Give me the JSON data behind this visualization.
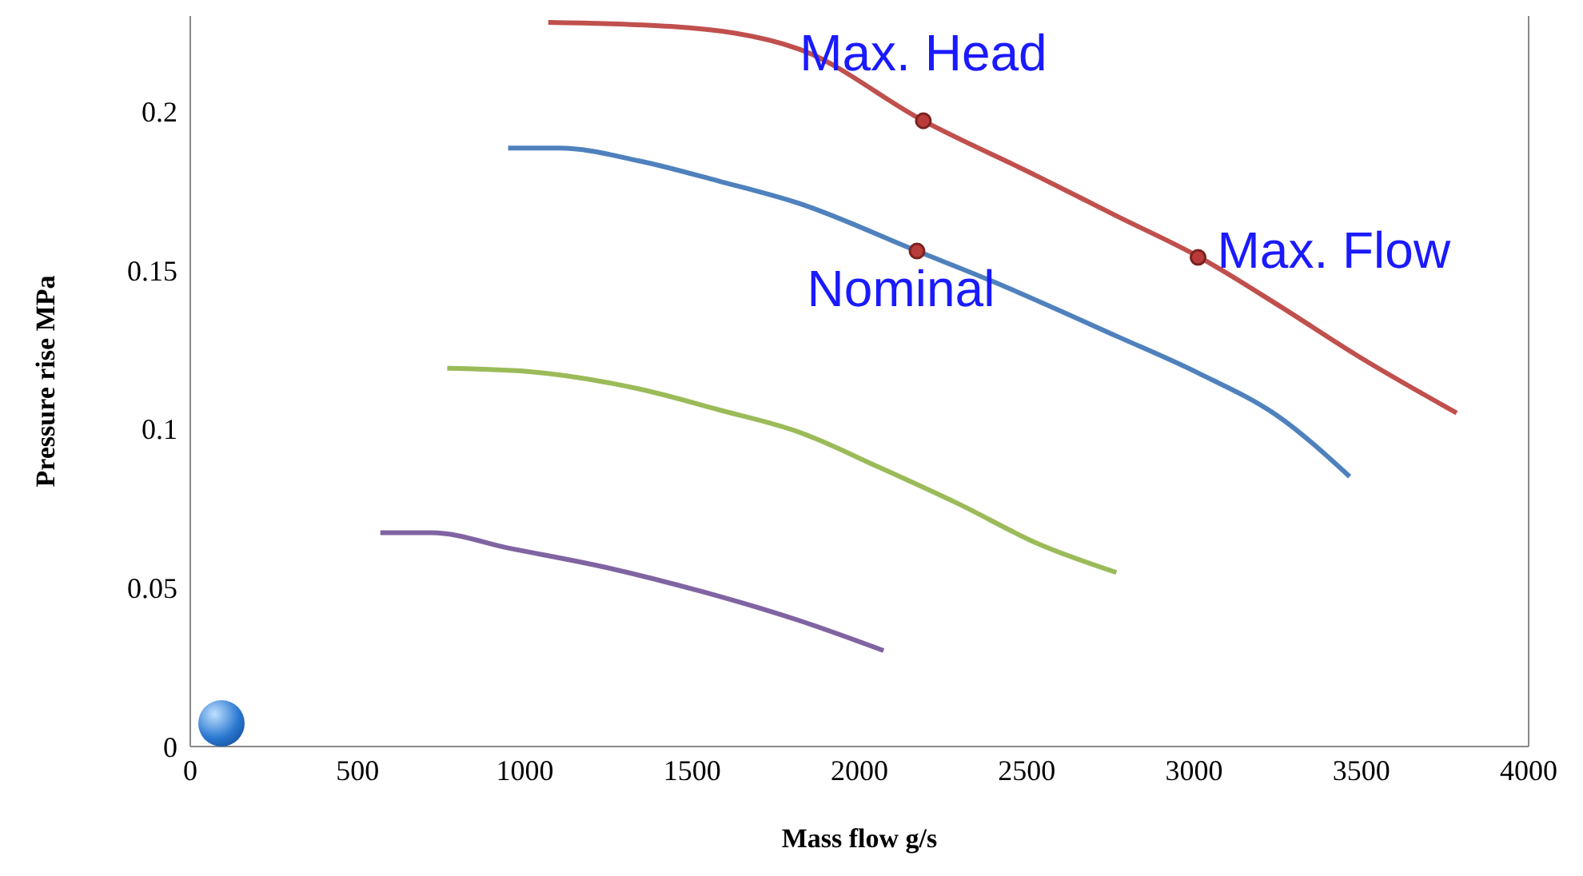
{
  "chart_data": {
    "type": "line",
    "xlabel": "Mass flow g/s",
    "ylabel": "Pressure rise MPa",
    "xlim": [
      0,
      4000
    ],
    "xticks": [
      0,
      500,
      1000,
      1500,
      2000,
      2500,
      3000,
      3500,
      4000
    ],
    "ylim": [
      0,
      0.23
    ],
    "yticks": [
      0,
      0.05,
      0.1,
      0.15,
      0.2
    ],
    "grid": false,
    "line_style": "solid",
    "series": [
      {
        "color": "#c0504d",
        "x": [
          1070,
          1437,
          1819,
          2191,
          2535,
          2773,
          3012,
          3251,
          3489,
          3785
        ],
        "values": [
          0.228,
          0.2267,
          0.2196,
          0.197,
          0.1794,
          0.1668,
          0.1543,
          0.139,
          0.123,
          0.105
        ]
      },
      {
        "color": "#4f81bd",
        "x": [
          950,
          1103,
          1341,
          1580,
          1819,
          2172,
          2392,
          2773,
          3012,
          3251,
          3465
        ],
        "values": [
          0.1884,
          0.1884,
          0.1844,
          0.178,
          0.171,
          0.156,
          0.1467,
          0.129,
          0.1176,
          0.104,
          0.085
        ]
      },
      {
        "color": "#9bbb59",
        "x": [
          768,
          1007,
          1341,
          1580,
          1819,
          2057,
          2296,
          2535,
          2768
        ],
        "values": [
          0.1191,
          0.1181,
          0.1126,
          0.106,
          0.099,
          0.088,
          0.0764,
          0.0638,
          0.0548
        ]
      },
      {
        "color": "#8064a2",
        "x": [
          568,
          721,
          959,
          1246,
          1532,
          1819,
          2072
        ],
        "values": [
          0.0673,
          0.0673,
          0.0623,
          0.0563,
          0.0487,
          0.0397,
          0.0302
        ]
      },
      {
        "type": "scatter",
        "marker": "circle",
        "color": "#b83c3a",
        "x": [
          2191,
          2172,
          3012
        ],
        "values": [
          0.197,
          0.156,
          0.154
        ]
      }
    ],
    "annotations": [
      {
        "text": "Max. Head",
        "x": 2191,
        "y": 0.197
      },
      {
        "text": "Max. Flow",
        "x": 3012,
        "y": 0.154
      },
      {
        "text": "Nominal",
        "x": 2172,
        "y": 0.156
      }
    ]
  }
}
